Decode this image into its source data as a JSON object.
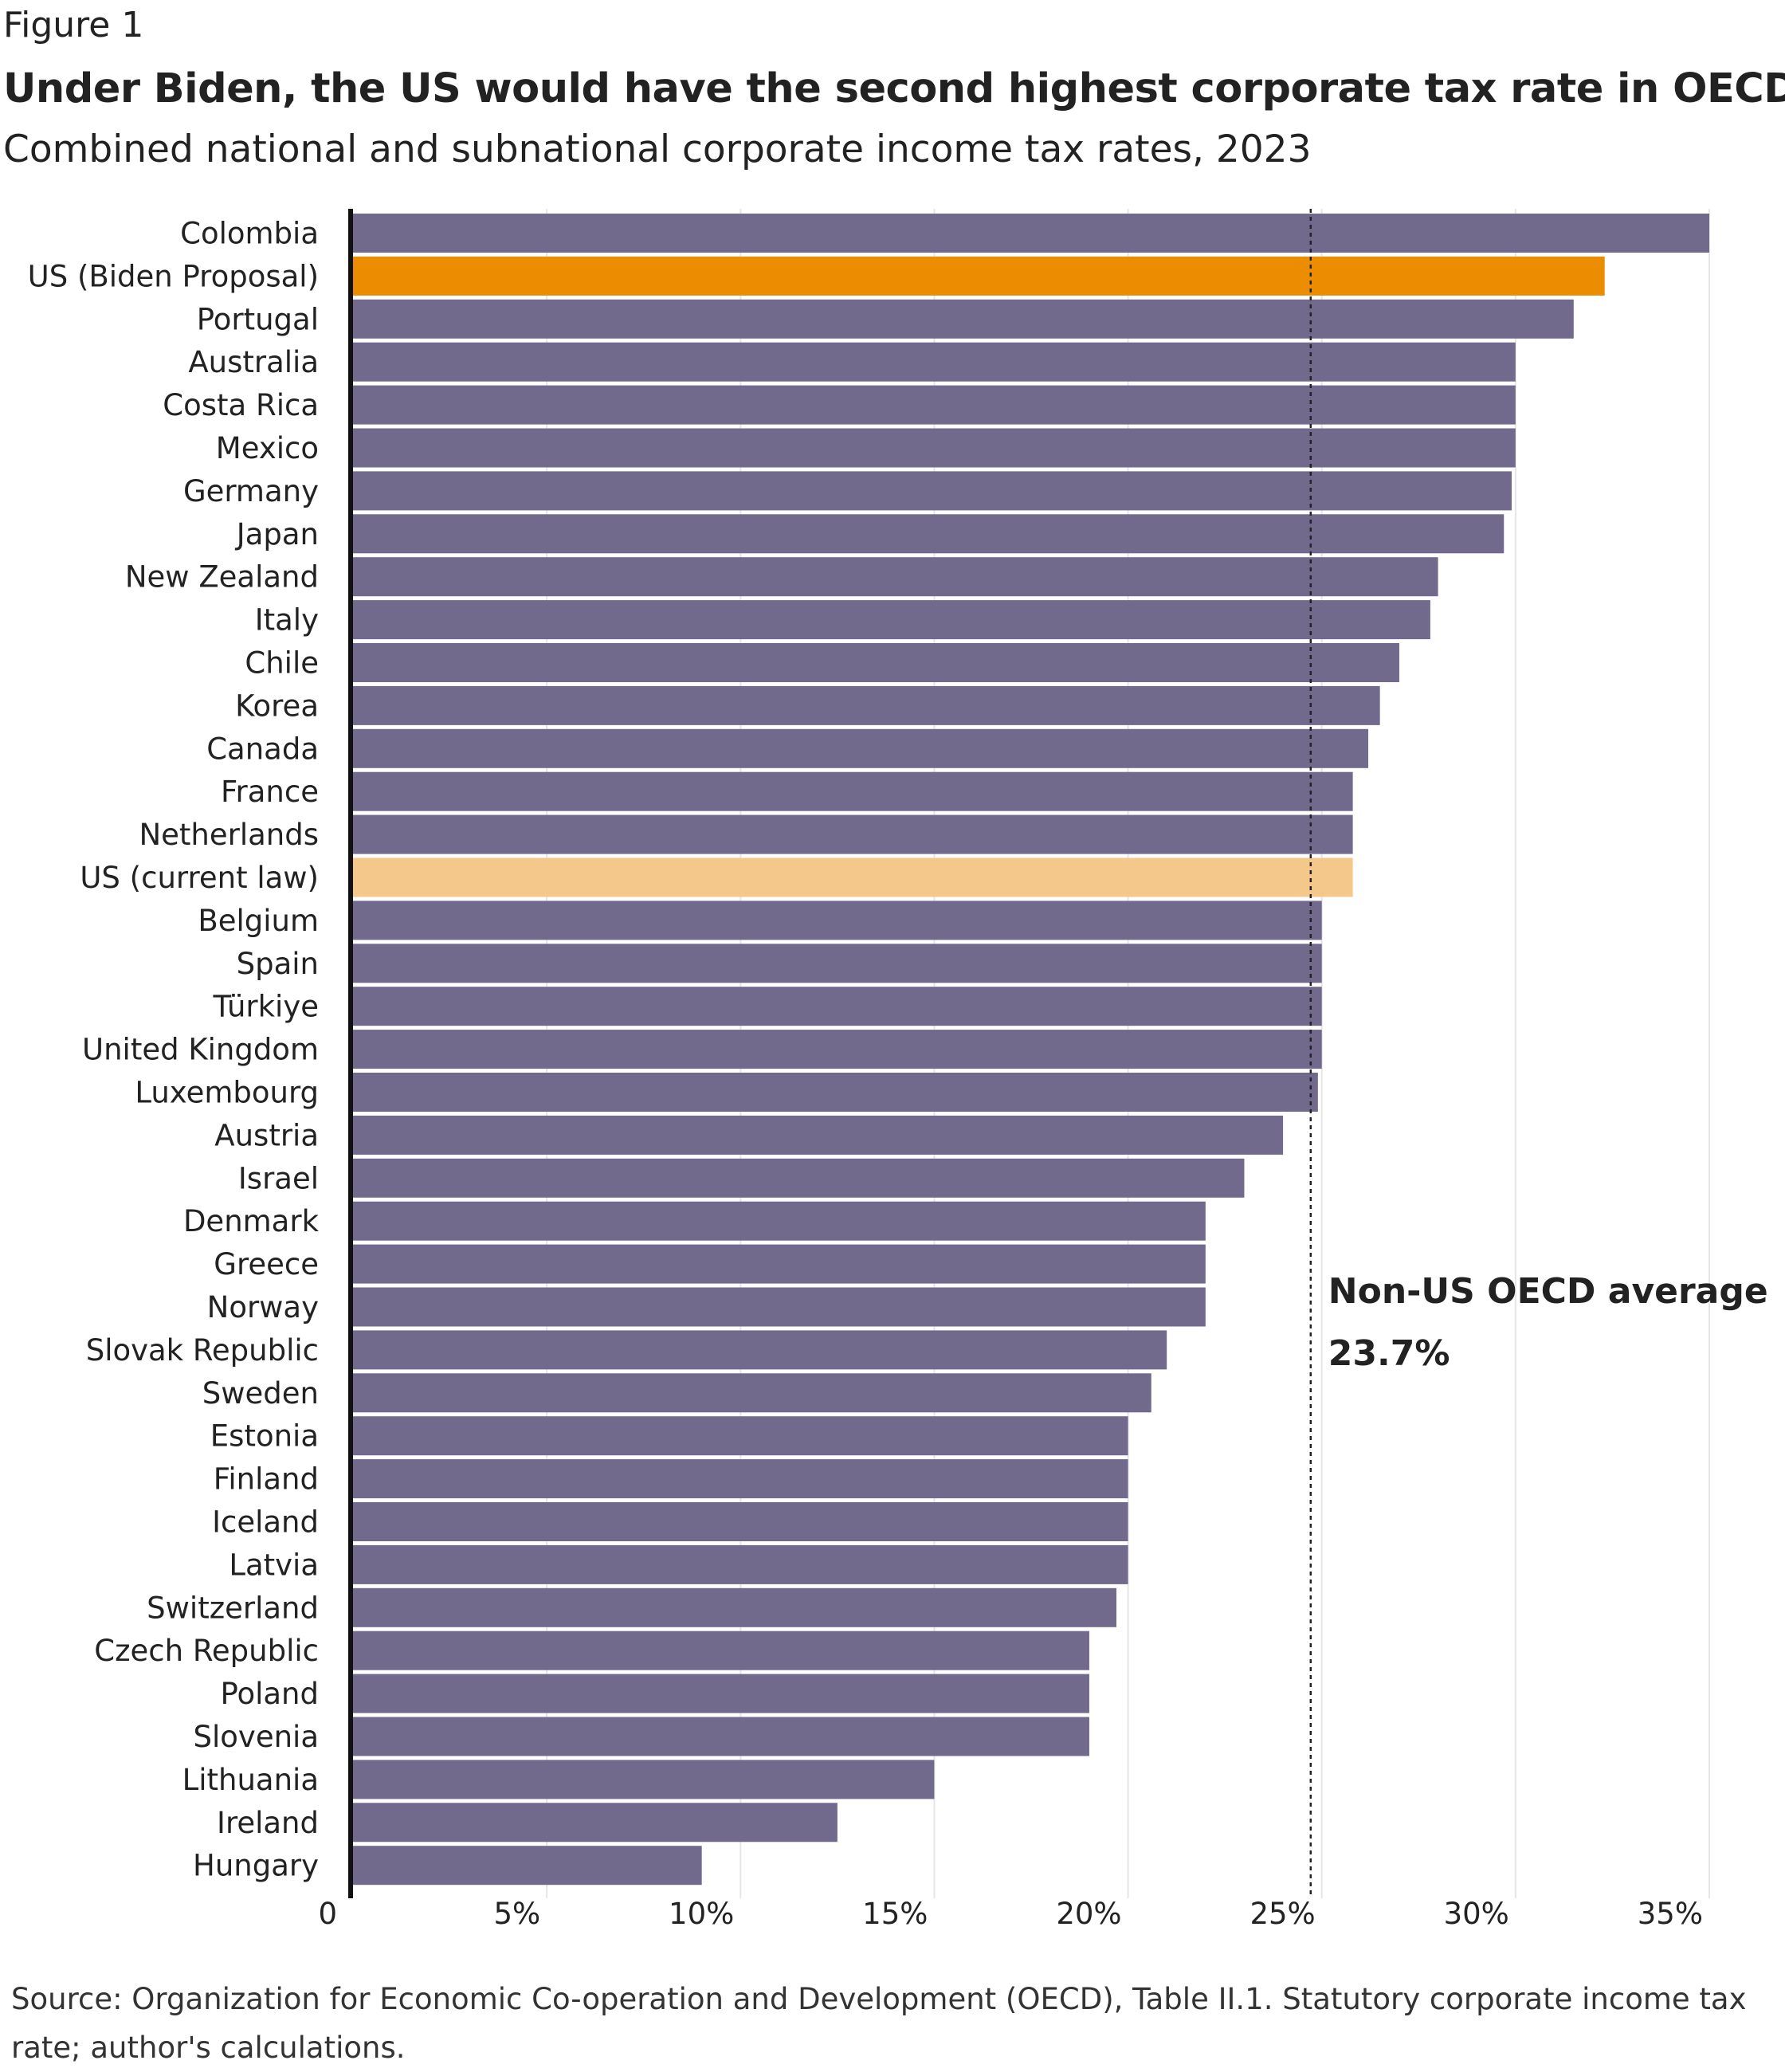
{
  "figure_label": "Figure 1",
  "title": "Under Biden, the US would have the second highest corporate tax rate in OECD",
  "subtitle": "Combined national and subnational corporate income tax rates, 2023",
  "source": "Source: Organization for Economic Co-operation and Development (OECD), Table II.1. Statutory corporate income tax rate; author's calculations.",
  "colors": {
    "default_bar": "#716a8d",
    "us_biden": "#ec8c00",
    "us_current": "#f3c88a",
    "axis": "#111111",
    "grid": "#e6e6e6"
  },
  "chart_data": {
    "type": "bar",
    "orientation": "horizontal",
    "categories": [
      "Colombia",
      "US (Biden Proposal)",
      "Portugal",
      "Australia",
      "Costa Rica",
      "Mexico",
      "Germany",
      "Japan",
      "New Zealand",
      "Italy",
      "Chile",
      "Korea",
      "Canada",
      "France",
      "Netherlands",
      "US (current law)",
      "Belgium",
      "Spain",
      "Türkiye",
      "United Kingdom",
      "Luxembourg",
      "Austria",
      "Israel",
      "Denmark",
      "Greece",
      "Norway",
      "Slovak Republic",
      "Sweden",
      "Estonia",
      "Finland",
      "Iceland",
      "Latvia",
      "Switzerland",
      "Czech Republic",
      "Poland",
      "Slovenia",
      "Lithuania",
      "Ireland",
      "Hungary"
    ],
    "values": [
      35,
      32.3,
      31.5,
      30,
      30,
      30,
      29.9,
      29.7,
      28,
      27.8,
      27,
      26.5,
      26.2,
      25.8,
      25.8,
      25.8,
      25,
      25,
      25,
      25,
      24.9,
      24,
      23,
      22,
      22,
      22,
      21,
      20.6,
      20,
      20,
      20,
      20,
      19.7,
      19,
      19,
      19,
      15,
      12.5,
      9
    ],
    "highlights": {
      "US (Biden Proposal)": "us_biden",
      "US (current law)": "us_current"
    },
    "xlim": [
      0,
      35
    ],
    "xticks": [
      0,
      5,
      10,
      15,
      20,
      25,
      30,
      35
    ],
    "xtick_labels": [
      "0",
      "5%",
      "10%",
      "15%",
      "20%",
      "25%",
      "30%",
      "35%"
    ],
    "grid": true,
    "reference_line": {
      "value": 23.7,
      "style": "dotted",
      "label_line1": "Non-US OECD average",
      "label_line2": "23.7%"
    },
    "xlabel": "",
    "ylabel": ""
  }
}
